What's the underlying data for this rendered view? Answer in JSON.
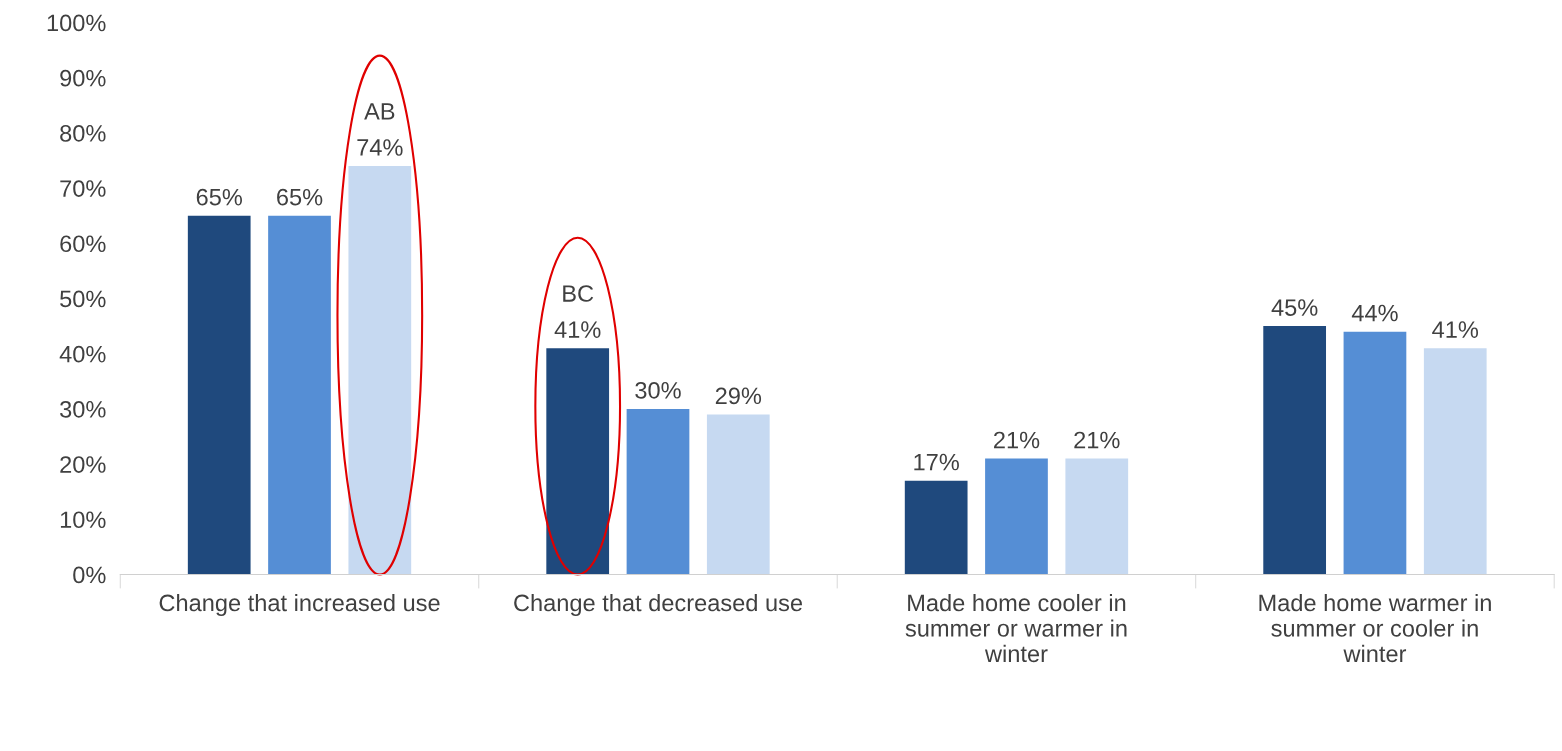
{
  "chart_data": {
    "type": "bar",
    "categories": [
      "Change that increased use",
      "Change that decreased use",
      "Made home cooler in summer or warmer in winter",
      "Made home warmer in summer or cooler in winter"
    ],
    "series": [
      {
        "color": "#1f497d",
        "values": [
          65,
          41,
          17,
          45
        ],
        "value_labels": [
          "65%",
          "41%",
          "17%",
          "45%"
        ]
      },
      {
        "color": "#558ed5",
        "values": [
          65,
          30,
          21,
          44
        ],
        "value_labels": [
          "65%",
          "30%",
          "21%",
          "44%"
        ]
      },
      {
        "color": "#c6d9f1",
        "values": [
          74,
          29,
          21,
          41
        ],
        "value_labels": [
          "74%",
          "29%",
          "21%",
          "41%"
        ]
      }
    ],
    "ylim": [
      0,
      100
    ],
    "yticks": [
      {
        "value": 0,
        "label": "0%"
      },
      {
        "value": 10,
        "label": "10%"
      },
      {
        "value": 20,
        "label": "20%"
      },
      {
        "value": 30,
        "label": "30%"
      },
      {
        "value": 40,
        "label": "40%"
      },
      {
        "value": 50,
        "label": "50%"
      },
      {
        "value": 60,
        "label": "60%"
      },
      {
        "value": 70,
        "label": "70%"
      },
      {
        "value": 80,
        "label": "80%"
      },
      {
        "value": 90,
        "label": "90%"
      },
      {
        "value": 100,
        "label": "100%"
      }
    ],
    "annotations": [
      "AB",
      "BC"
    ],
    "grid": false,
    "legend": false
  }
}
